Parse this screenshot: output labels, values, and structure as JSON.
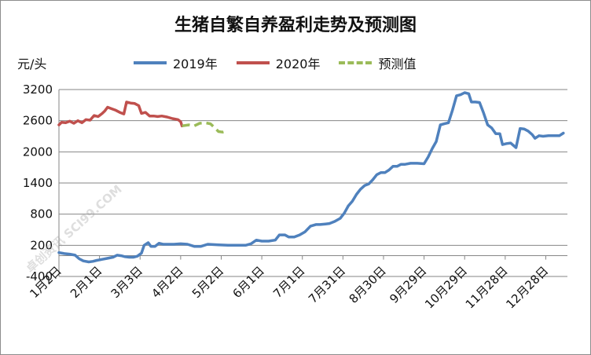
{
  "chart_data": {
    "type": "line",
    "title": "生猪自繁自养盈利走势及预测图",
    "ylabel": "元/头",
    "ylim": [
      -400,
      3200
    ],
    "yticks": [
      3200,
      2600,
      2000,
      1400,
      800,
      200,
      -400
    ],
    "grid": "y",
    "legend_position": "top",
    "categories": [
      "1月2日",
      "2月1日",
      "3月3日",
      "4月2日",
      "5月2日",
      "6月1日",
      "7月1日",
      "7月31日",
      "8月30日",
      "9月29日",
      "10月29日",
      "11月28日",
      "12月28日"
    ],
    "series": [
      {
        "name": "2019年",
        "color": "#4f81bd",
        "dash": false,
        "points": [
          [
            0,
            60
          ],
          [
            4,
            40
          ],
          [
            8,
            30
          ],
          [
            12,
            10
          ],
          [
            15,
            -60
          ],
          [
            18,
            -100
          ],
          [
            22,
            -120
          ],
          [
            25,
            -110
          ],
          [
            28,
            -90
          ],
          [
            32,
            -70
          ],
          [
            36,
            -50
          ],
          [
            40,
            -30
          ],
          [
            43,
            10
          ],
          [
            46,
            0
          ],
          [
            49,
            -20
          ],
          [
            52,
            -30
          ],
          [
            55,
            -30
          ],
          [
            58,
            -10
          ],
          [
            61,
            50
          ],
          [
            63,
            200
          ],
          [
            66,
            250
          ],
          [
            68,
            180
          ],
          [
            71,
            180
          ],
          [
            74,
            240
          ],
          [
            77,
            220
          ],
          [
            80,
            220
          ],
          [
            85,
            220
          ],
          [
            90,
            230
          ],
          [
            95,
            220
          ],
          [
            100,
            180
          ],
          [
            105,
            180
          ],
          [
            110,
            220
          ],
          [
            118,
            210
          ],
          [
            125,
            200
          ],
          [
            132,
            200
          ],
          [
            138,
            200
          ],
          [
            142,
            230
          ],
          [
            146,
            300
          ],
          [
            150,
            280
          ],
          [
            155,
            280
          ],
          [
            160,
            300
          ],
          [
            163,
            400
          ],
          [
            167,
            400
          ],
          [
            170,
            360
          ],
          [
            174,
            360
          ],
          [
            178,
            400
          ],
          [
            182,
            460
          ],
          [
            186,
            570
          ],
          [
            190,
            600
          ],
          [
            193,
            600
          ],
          [
            197,
            610
          ],
          [
            200,
            620
          ],
          [
            204,
            660
          ],
          [
            208,
            720
          ],
          [
            211,
            820
          ],
          [
            214,
            960
          ],
          [
            217,
            1050
          ],
          [
            220,
            1180
          ],
          [
            223,
            1280
          ],
          [
            226,
            1350
          ],
          [
            229,
            1380
          ],
          [
            232,
            1460
          ],
          [
            235,
            1560
          ],
          [
            238,
            1600
          ],
          [
            241,
            1600
          ],
          [
            244,
            1650
          ],
          [
            247,
            1720
          ],
          [
            250,
            1720
          ],
          [
            253,
            1760
          ],
          [
            256,
            1760
          ],
          [
            260,
            1780
          ],
          [
            265,
            1780
          ],
          [
            270,
            1770
          ],
          [
            273,
            1900
          ],
          [
            276,
            2060
          ],
          [
            279,
            2200
          ],
          [
            282,
            2520
          ],
          [
            285,
            2540
          ],
          [
            288,
            2560
          ],
          [
            291,
            2800
          ],
          [
            294,
            3080
          ],
          [
            297,
            3100
          ],
          [
            300,
            3140
          ],
          [
            303,
            3120
          ],
          [
            305,
            2960
          ],
          [
            308,
            2960
          ],
          [
            311,
            2950
          ],
          [
            314,
            2750
          ],
          [
            317,
            2520
          ],
          [
            320,
            2460
          ],
          [
            323,
            2350
          ],
          [
            326,
            2350
          ],
          [
            328,
            2140
          ],
          [
            331,
            2160
          ],
          [
            334,
            2170
          ],
          [
            338,
            2080
          ],
          [
            341,
            2450
          ],
          [
            344,
            2440
          ],
          [
            347,
            2400
          ],
          [
            350,
            2330
          ],
          [
            352,
            2260
          ],
          [
            355,
            2310
          ],
          [
            358,
            2300
          ],
          [
            362,
            2310
          ],
          [
            366,
            2310
          ],
          [
            370,
            2310
          ],
          [
            373,
            2360
          ]
        ]
      },
      {
        "name": "2020年",
        "color": "#c0504d",
        "dash": false,
        "points": [
          [
            0,
            2520
          ],
          [
            2,
            2570
          ],
          [
            5,
            2560
          ],
          [
            8,
            2590
          ],
          [
            11,
            2550
          ],
          [
            14,
            2600
          ],
          [
            17,
            2560
          ],
          [
            20,
            2620
          ],
          [
            23,
            2610
          ],
          [
            26,
            2700
          ],
          [
            29,
            2680
          ],
          [
            32,
            2740
          ],
          [
            34,
            2790
          ],
          [
            36,
            2860
          ],
          [
            39,
            2830
          ],
          [
            42,
            2800
          ],
          [
            45,
            2760
          ],
          [
            48,
            2730
          ],
          [
            50,
            2960
          ],
          [
            53,
            2940
          ],
          [
            56,
            2930
          ],
          [
            59,
            2890
          ],
          [
            61,
            2740
          ],
          [
            64,
            2760
          ],
          [
            67,
            2690
          ],
          [
            70,
            2690
          ],
          [
            73,
            2680
          ],
          [
            76,
            2690
          ],
          [
            80,
            2670
          ],
          [
            84,
            2640
          ],
          [
            88,
            2620
          ],
          [
            90,
            2580
          ],
          [
            91,
            2500
          ]
        ]
      },
      {
        "name": "预测值",
        "color": "#9bbb59",
        "dash": true,
        "points": [
          [
            91,
            2500
          ],
          [
            96,
            2520
          ],
          [
            100,
            2500
          ],
          [
            104,
            2550
          ],
          [
            108,
            2560
          ],
          [
            112,
            2540
          ],
          [
            115,
            2470
          ],
          [
            118,
            2390
          ],
          [
            121,
            2380
          ],
          [
            124,
            2400
          ]
        ]
      }
    ]
  },
  "watermark": "卓创资讯 SCI99.COM"
}
